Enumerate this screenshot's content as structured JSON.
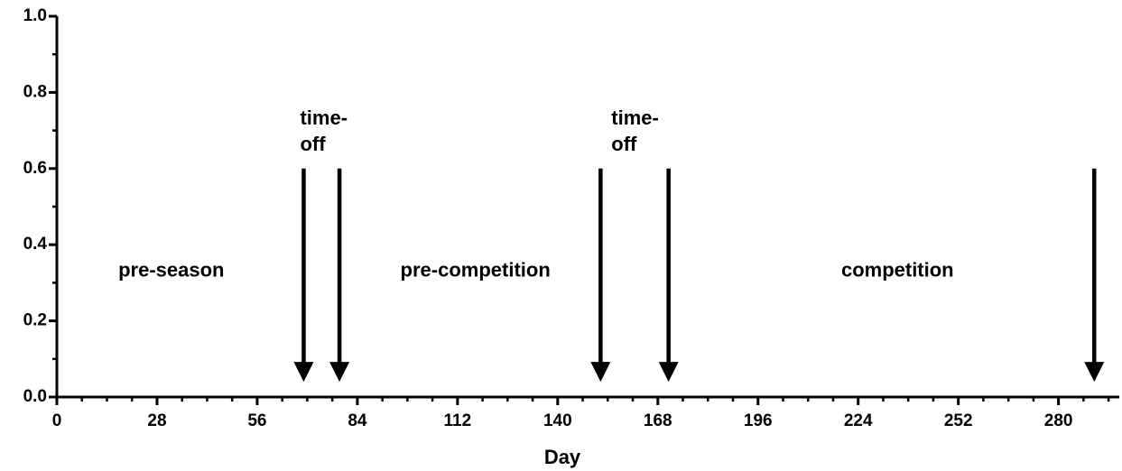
{
  "chart_data": {
    "type": "arrow-annotations",
    "xlabel": "Day",
    "xlim": [
      0,
      297
    ],
    "xticks": [
      0,
      28,
      56,
      84,
      112,
      140,
      168,
      196,
      224,
      252,
      280
    ],
    "xminor_step": 7,
    "ylim": [
      0,
      1
    ],
    "yticks": [
      {
        "value": 0,
        "label": "0.0"
      },
      {
        "value": 0.2,
        "label": "0.2"
      },
      {
        "value": 0.4,
        "label": "0.4"
      },
      {
        "value": 0.6,
        "label": "0.6"
      },
      {
        "value": 0.8,
        "label": "0.8"
      },
      {
        "value": 1,
        "label": "1.0"
      }
    ],
    "yminor_step": 0.1,
    "color": "#000000",
    "arrows": [
      {
        "x": 69,
        "y_start": 0.6,
        "y_end": 0.04
      },
      {
        "x": 79,
        "y_start": 0.6,
        "y_end": 0.04
      },
      {
        "x": 152,
        "y_start": 0.6,
        "y_end": 0.04
      },
      {
        "x": 171,
        "y_start": 0.6,
        "y_end": 0.04
      },
      {
        "x": 290,
        "y_start": 0.6,
        "y_end": 0.04
      }
    ],
    "annotations": [
      {
        "lines": [
          "time-",
          "off"
        ],
        "x": 68,
        "y": 0.73,
        "anchor": "start"
      },
      {
        "lines": [
          "time-",
          "off"
        ],
        "x": 155,
        "y": 0.73,
        "anchor": "start"
      },
      {
        "lines": [
          "pre-season"
        ],
        "x": 32,
        "y": 0.33,
        "anchor": "middle"
      },
      {
        "lines": [
          "pre-competition"
        ],
        "x": 117,
        "y": 0.33,
        "anchor": "middle"
      },
      {
        "lines": [
          "competition"
        ],
        "x": 235,
        "y": 0.33,
        "anchor": "middle"
      }
    ]
  }
}
